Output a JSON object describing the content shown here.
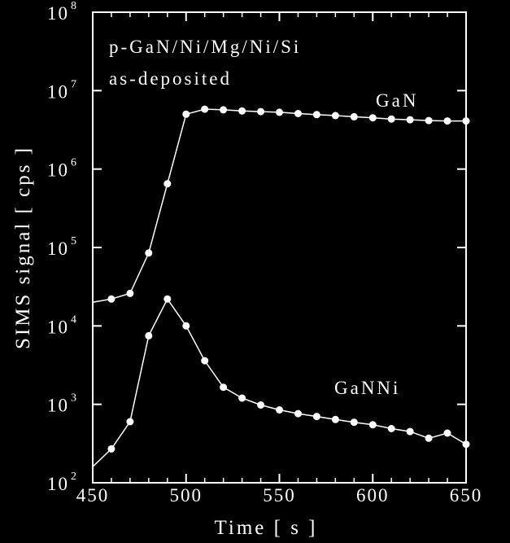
{
  "chart_data": {
    "type": "line",
    "title": "",
    "xlabel": "Time  [ s ]",
    "ylabel": "SIMS signal  [ cps ]",
    "xlim": [
      450,
      650
    ],
    "ylim": [
      100,
      100000000
    ],
    "yscale": "log",
    "grid": false,
    "x_ticks": [
      450,
      500,
      550,
      600,
      650
    ],
    "y_ticks": [
      {
        "base": "10",
        "exp": "2",
        "value": 100
      },
      {
        "base": "10",
        "exp": "3",
        "value": 1000
      },
      {
        "base": "10",
        "exp": "4",
        "value": 10000
      },
      {
        "base": "10",
        "exp": "5",
        "value": 100000
      },
      {
        "base": "10",
        "exp": "6",
        "value": 1000000
      },
      {
        "base": "10",
        "exp": "7",
        "value": 10000000
      },
      {
        "base": "10",
        "exp": "8",
        "value": 100000000
      }
    ],
    "annotations": [
      "p-GaN/Ni/Mg/Ni/Si",
      "as-deposited"
    ],
    "series": [
      {
        "name": "GaN",
        "color": "#ffffff",
        "x": [
          450,
          460,
          470,
          480,
          490,
          500,
          510,
          520,
          530,
          540,
          550,
          560,
          570,
          580,
          590,
          600,
          610,
          620,
          630,
          640,
          650
        ],
        "y": [
          20000,
          22000,
          26000,
          85000,
          650000,
          5000000,
          5800000,
          5700000,
          5500000,
          5400000,
          5300000,
          5100000,
          4950000,
          4800000,
          4650000,
          4500000,
          4350000,
          4250000,
          4150000,
          4100000,
          4100000
        ],
        "markers": [
          false,
          true,
          true,
          true,
          true,
          true,
          true,
          true,
          true,
          true,
          true,
          true,
          true,
          true,
          true,
          true,
          true,
          true,
          true,
          true,
          true
        ]
      },
      {
        "name": "GaNNi",
        "color": "#ffffff",
        "x": [
          450,
          460,
          470,
          480,
          490,
          500,
          510,
          520,
          530,
          540,
          550,
          560,
          570,
          580,
          590,
          600,
          610,
          620,
          630,
          640,
          650
        ],
        "y": [
          160,
          270,
          600,
          7500,
          22000,
          10000,
          3600,
          1650,
          1200,
          980,
          850,
          760,
          700,
          640,
          590,
          550,
          490,
          450,
          370,
          430,
          310
        ],
        "markers": [
          false,
          true,
          true,
          true,
          true,
          true,
          true,
          true,
          true,
          true,
          true,
          true,
          true,
          true,
          true,
          true,
          true,
          true,
          true,
          true,
          true
        ]
      }
    ]
  }
}
